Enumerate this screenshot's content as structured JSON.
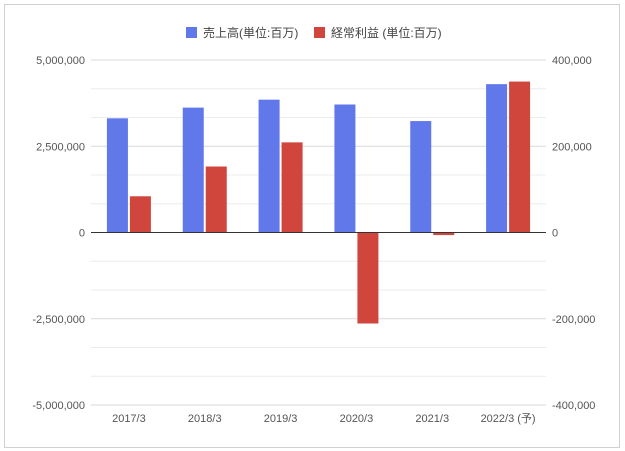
{
  "chart_data": {
    "type": "bar",
    "categories": [
      "2017/3",
      "2018/3",
      "2019/3",
      "2020/3",
      "2021/3",
      "2022/3 (予)"
    ],
    "series": [
      {
        "name": "売上高(単位:百万)",
        "axis": "left",
        "color": "#6078ea",
        "values": [
          3310000,
          3620000,
          3850000,
          3710000,
          3230000,
          4300000
        ]
      },
      {
        "name": "経常利益 (単位:百万)",
        "axis": "right",
        "color": "#d0453c",
        "values": [
          84000,
          153000,
          209000,
          -211000,
          -6000,
          350000
        ]
      }
    ],
    "y_left": {
      "min": -5000000,
      "max": 5000000,
      "ticks": [
        5000000,
        2500000,
        0,
        -2500000,
        -5000000
      ],
      "tick_labels": [
        "5,000,000",
        "2,500,000",
        "0",
        "-2,500,000",
        "-5,000,000"
      ]
    },
    "y_right": {
      "min": -400000,
      "max": 400000,
      "ticks": [
        400000,
        200000,
        0,
        -200000,
        -400000
      ],
      "tick_labels": [
        "400,000",
        "200,000",
        "0",
        "-200,000",
        "-400,000"
      ]
    },
    "legend_position": "top",
    "grid": true
  }
}
